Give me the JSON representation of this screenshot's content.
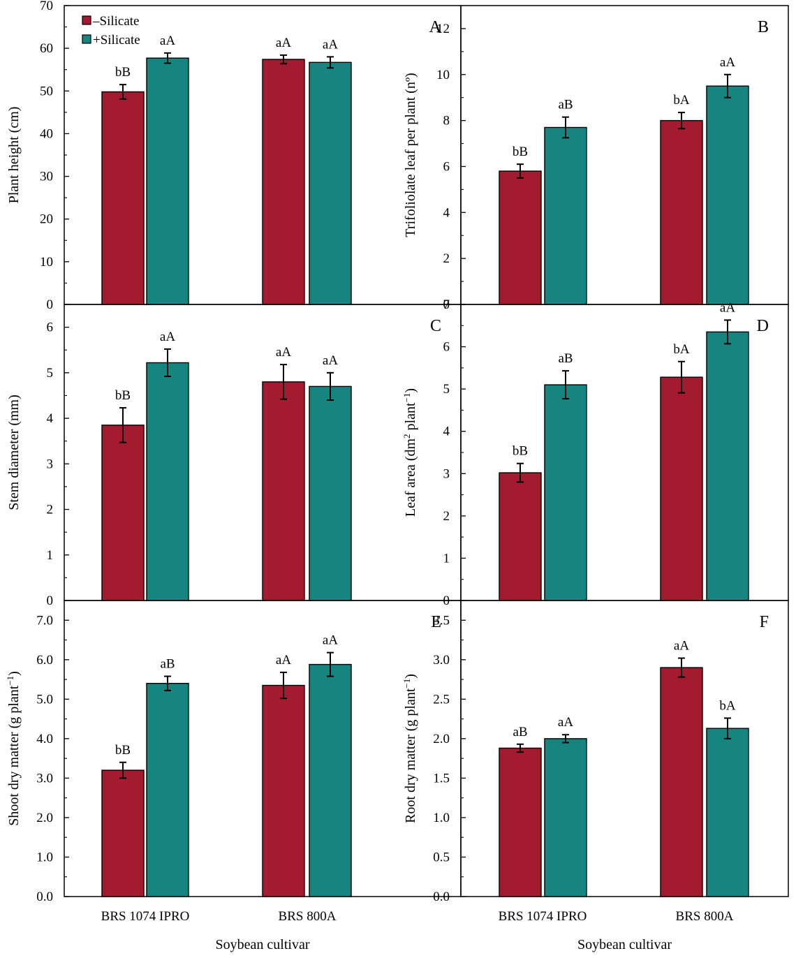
{
  "colors": {
    "minus": "#a31b2e",
    "plus": "#168580",
    "axis": "#000000"
  },
  "legend": {
    "minus_label": "–Silicate",
    "plus_label": "+Silicate"
  },
  "x_title": "Soybean cultivar",
  "categories": [
    "BRS 1074 IPRO",
    "BRS 800A"
  ],
  "chart_data": [
    {
      "type": "bar",
      "letter": "A",
      "ylabel_parts": [
        "Plant height (cm)"
      ],
      "ylim": [
        0,
        70
      ],
      "ticks": [
        0,
        10,
        20,
        30,
        40,
        50,
        60,
        70
      ],
      "decimals": 0,
      "categories": [
        "BRS 1074 IPRO",
        "BRS 800A"
      ],
      "series": [
        {
          "name": "–Silicate",
          "values": [
            49.8,
            57.4
          ],
          "errors": [
            1.7,
            1.0
          ],
          "labels": [
            "bB",
            "aA"
          ]
        },
        {
          "name": "+Silicate",
          "values": [
            57.7,
            56.7
          ],
          "errors": [
            1.2,
            1.3
          ],
          "labels": [
            "aA",
            "aA"
          ]
        }
      ]
    },
    {
      "type": "bar",
      "letter": "B",
      "ylabel_parts": [
        "Trifoliolate leaf per plant (nº)"
      ],
      "ylim": [
        0,
        13
      ],
      "ticks": [
        0,
        2,
        4,
        6,
        8,
        10,
        12
      ],
      "decimals": 0,
      "categories": [
        "BRS 1074 IPRO",
        "BRS 800A"
      ],
      "series": [
        {
          "name": "–Silicate",
          "values": [
            5.8,
            8.0
          ],
          "errors": [
            0.3,
            0.35
          ],
          "labels": [
            "bB",
            "bA"
          ]
        },
        {
          "name": "+Silicate",
          "values": [
            7.7,
            9.5
          ],
          "errors": [
            0.45,
            0.5
          ],
          "labels": [
            "aB",
            "aA"
          ]
        }
      ]
    },
    {
      "type": "bar",
      "letter": "C",
      "ylabel_parts": [
        "Stem diameter (mm)"
      ],
      "ylim": [
        0,
        6.5
      ],
      "ticks": [
        0,
        1,
        2,
        3,
        4,
        5,
        6
      ],
      "decimals": 0,
      "categories": [
        "BRS 1074 IPRO",
        "BRS 800A"
      ],
      "series": [
        {
          "name": "–Silicate",
          "values": [
            3.85,
            4.8
          ],
          "errors": [
            0.38,
            0.38
          ],
          "labels": [
            "bB",
            "aA"
          ]
        },
        {
          "name": "+Silicate",
          "values": [
            5.22,
            4.7
          ],
          "errors": [
            0.3,
            0.3
          ],
          "labels": [
            "aA",
            "aA"
          ]
        }
      ]
    },
    {
      "type": "bar",
      "letter": "D",
      "ylabel_parts": [
        "Leaf area (dm",
        "2",
        " plant",
        "−1",
        ")"
      ],
      "ylim": [
        0,
        7
      ],
      "ticks": [
        0,
        1,
        2,
        3,
        4,
        5,
        6,
        7
      ],
      "decimals": 0,
      "categories": [
        "BRS 1074 IPRO",
        "BRS 800A"
      ],
      "series": [
        {
          "name": "–Silicate",
          "values": [
            3.02,
            5.28
          ],
          "errors": [
            0.22,
            0.37
          ],
          "labels": [
            "bB",
            "bA"
          ]
        },
        {
          "name": "+Silicate",
          "values": [
            5.1,
            6.35
          ],
          "errors": [
            0.33,
            0.28
          ],
          "labels": [
            "aB",
            "aA"
          ]
        }
      ]
    },
    {
      "type": "bar",
      "letter": "E",
      "ylabel_parts": [
        "Shoot dry matter (g plant",
        "−1",
        ")"
      ],
      "ylim": [
        0,
        7.5
      ],
      "ticks": [
        0,
        1,
        2,
        3,
        4,
        5,
        6,
        7
      ],
      "decimals": 1,
      "categories": [
        "BRS 1074 IPRO",
        "BRS 800A"
      ],
      "series": [
        {
          "name": "–Silicate",
          "values": [
            3.2,
            5.35
          ],
          "errors": [
            0.2,
            0.33
          ],
          "labels": [
            "bB",
            "aA"
          ]
        },
        {
          "name": "+Silicate",
          "values": [
            5.4,
            5.88
          ],
          "errors": [
            0.18,
            0.3
          ],
          "labels": [
            "aB",
            "aA"
          ]
        }
      ]
    },
    {
      "type": "bar",
      "letter": "F",
      "ylabel_parts": [
        "Root dry matter (g plant",
        "−1",
        ")"
      ],
      "ylim": [
        0,
        3.75
      ],
      "ticks": [
        0,
        0.5,
        1,
        1.5,
        2,
        2.5,
        3,
        3.5
      ],
      "decimals": 1,
      "categories": [
        "BRS 1074 IPRO",
        "BRS 800A"
      ],
      "series": [
        {
          "name": "–Silicate",
          "values": [
            1.88,
            2.9
          ],
          "errors": [
            0.05,
            0.12
          ],
          "labels": [
            "aB",
            "aA"
          ]
        },
        {
          "name": "+Silicate",
          "values": [
            2.0,
            2.13
          ],
          "errors": [
            0.05,
            0.13
          ],
          "labels": [
            "aA",
            "bA"
          ]
        }
      ]
    }
  ]
}
